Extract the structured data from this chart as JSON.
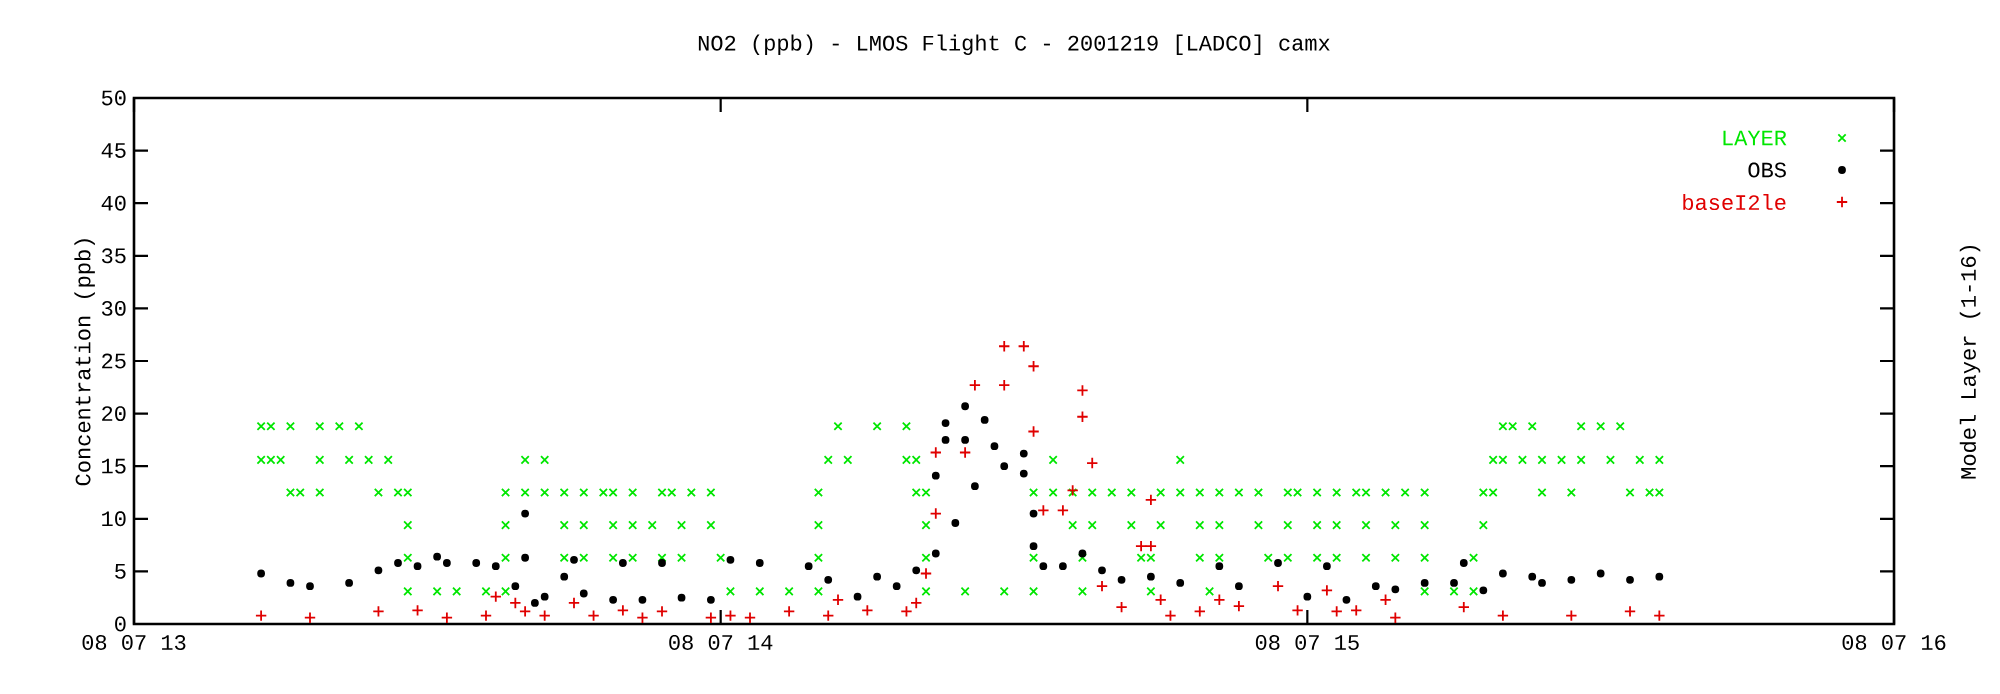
{
  "chart_data": {
    "type": "scatter",
    "title": "NO2 (ppb) - LMOS Flight C - 2001219 [LADCO] camx",
    "ylabel": "Concentration (ppb)",
    "y2label": "Model Layer (1-16)",
    "xlim": [
      "2001-08-07T13:00",
      "2001-08-07T16:00"
    ],
    "ylim": [
      0,
      50
    ],
    "xticks": [
      {
        "value": "2001-08-07T13:00",
        "label": "08 07 13"
      },
      {
        "value": "2001-08-07T14:00",
        "label": "08 07 14"
      },
      {
        "value": "2001-08-07T15:00",
        "label": "08 07 15"
      },
      {
        "value": "2001-08-07T16:00",
        "label": "08 07 16"
      }
    ],
    "yticks": [
      0,
      5,
      10,
      15,
      20,
      25,
      30,
      35,
      40,
      45,
      50
    ],
    "legend": "top right",
    "grid": false,
    "series": [
      {
        "name": "LAYER",
        "color": "#00e600",
        "marker": "cross",
        "x": [
          "2001-08-07T13:13",
          "2001-08-07T13:14",
          "2001-08-07T13:16",
          "2001-08-07T13:19",
          "2001-08-07T13:21",
          "2001-08-07T13:23",
          "2001-08-07T13:13",
          "2001-08-07T13:14",
          "2001-08-07T13:15",
          "2001-08-07T13:19",
          "2001-08-07T13:22",
          "2001-08-07T13:24",
          "2001-08-07T13:26",
          "2001-08-07T13:16",
          "2001-08-07T13:17",
          "2001-08-07T13:19",
          "2001-08-07T13:25",
          "2001-08-07T13:27",
          "2001-08-07T13:28",
          "2001-08-07T13:28",
          "2001-08-07T13:28",
          "2001-08-07T13:28",
          "2001-08-07T13:31",
          "2001-08-07T13:33",
          "2001-08-07T13:36",
          "2001-08-07T13:38",
          "2001-08-07T13:38",
          "2001-08-07T13:38",
          "2001-08-07T13:38",
          "2001-08-07T13:40",
          "2001-08-07T13:40",
          "2001-08-07T13:42",
          "2001-08-07T13:42",
          "2001-08-07T13:44",
          "2001-08-07T13:44",
          "2001-08-07T13:46",
          "2001-08-07T13:44",
          "2001-08-07T13:46",
          "2001-08-07T13:46",
          "2001-08-07T13:48",
          "2001-08-07T13:49",
          "2001-08-07T13:49",
          "2001-08-07T13:51",
          "2001-08-07T13:49",
          "2001-08-07T13:51",
          "2001-08-07T13:51",
          "2001-08-07T13:54",
          "2001-08-07T13:53",
          "2001-08-07T13:56",
          "2001-08-07T13:54",
          "2001-08-07T13:56",
          "2001-08-07T13:55",
          "2001-08-07T13:57",
          "2001-08-07T13:59",
          "2001-08-07T13:59",
          "2001-08-07T14:00",
          "2001-08-07T14:01",
          "2001-08-07T14:04",
          "2001-08-07T14:07",
          "2001-08-07T14:10",
          "2001-08-07T14:10",
          "2001-08-07T14:10",
          "2001-08-07T14:10",
          "2001-08-07T14:11",
          "2001-08-07T14:13",
          "2001-08-07T14:12",
          "2001-08-07T14:16",
          "2001-08-07T14:19",
          "2001-08-07T14:19",
          "2001-08-07T14:20",
          "2001-08-07T14:20",
          "2001-08-07T14:21",
          "2001-08-07T14:21",
          "2001-08-07T14:21",
          "2001-08-07T14:21",
          "2001-08-07T14:25",
          "2001-08-07T14:29",
          "2001-08-07T14:32",
          "2001-08-07T14:32",
          "2001-08-07T14:32",
          "2001-08-07T14:34",
          "2001-08-07T14:36",
          "2001-08-07T14:34",
          "2001-08-07T14:36",
          "2001-08-07T14:37",
          "2001-08-07T14:37",
          "2001-08-07T14:38",
          "2001-08-07T14:38",
          "2001-08-07T14:40",
          "2001-08-07T14:42",
          "2001-08-07T14:42",
          "2001-08-07T14:43",
          "2001-08-07T14:44",
          "2001-08-07T14:44",
          "2001-08-07T14:45",
          "2001-08-07T14:45",
          "2001-08-07T14:47",
          "2001-08-07T14:49",
          "2001-08-07T14:47",
          "2001-08-07T14:49",
          "2001-08-07T14:49",
          "2001-08-07T14:51",
          "2001-08-07T14:50",
          "2001-08-07T14:51",
          "2001-08-07T14:51",
          "2001-08-07T14:53",
          "2001-08-07T14:55",
          "2001-08-07T14:55",
          "2001-08-07T14:58",
          "2001-08-07T14:56",
          "2001-08-07T14:58",
          "2001-08-07T14:58",
          "2001-08-07T14:59",
          "2001-08-07T15:01",
          "2001-08-07T15:01",
          "2001-08-07T15:03",
          "2001-08-07T15:01",
          "2001-08-07T15:03",
          "2001-08-07T15:03",
          "2001-08-07T15:05",
          "2001-08-07T15:06",
          "2001-08-07T15:06",
          "2001-08-07T15:09",
          "2001-08-07T15:06",
          "2001-08-07T15:09",
          "2001-08-07T15:08",
          "2001-08-07T15:10",
          "2001-08-07T15:12",
          "2001-08-07T15:12",
          "2001-08-07T15:12",
          "2001-08-07T15:12",
          "2001-08-07T15:15",
          "2001-08-07T15:17",
          "2001-08-07T15:17",
          "2001-08-07T15:18",
          "2001-08-07T15:18",
          "2001-08-07T15:19",
          "2001-08-07T15:19",
          "2001-08-07T15:20",
          "2001-08-07T15:20",
          "2001-08-07T15:21",
          "2001-08-07T15:23",
          "2001-08-07T15:22",
          "2001-08-07T15:24",
          "2001-08-07T15:24",
          "2001-08-07T15:27",
          "2001-08-07T15:26",
          "2001-08-07T15:28",
          "2001-08-07T15:28",
          "2001-08-07T15:30",
          "2001-08-07T15:32",
          "2001-08-07T15:31",
          "2001-08-07T15:34",
          "2001-08-07T15:33",
          "2001-08-07T15:35",
          "2001-08-07T15:36",
          "2001-08-07T15:36"
        ],
        "values": [
          18.8,
          18.8,
          18.8,
          18.8,
          18.8,
          18.8,
          15.6,
          15.6,
          15.6,
          15.6,
          15.6,
          15.6,
          15.6,
          12.5,
          12.5,
          12.5,
          12.5,
          12.5,
          12.5,
          9.4,
          6.3,
          3.1,
          3.1,
          3.1,
          3.1,
          3.1,
          6.3,
          9.4,
          12.5,
          12.5,
          15.6,
          15.6,
          12.5,
          12.5,
          9.4,
          9.4,
          6.3,
          6.3,
          12.5,
          12.5,
          12.5,
          9.4,
          9.4,
          6.3,
          6.3,
          12.5,
          12.5,
          9.4,
          9.4,
          6.3,
          6.3,
          12.5,
          12.5,
          12.5,
          9.4,
          6.3,
          3.1,
          3.1,
          3.1,
          3.1,
          6.3,
          9.4,
          12.5,
          15.6,
          15.6,
          18.8,
          18.8,
          18.8,
          15.6,
          15.6,
          12.5,
          12.5,
          9.4,
          6.3,
          3.1,
          3.1,
          3.1,
          3.1,
          6.3,
          12.5,
          12.5,
          12.5,
          15.6,
          9.4,
          6.3,
          3.1,
          9.4,
          12.5,
          12.5,
          12.5,
          9.4,
          6.3,
          6.3,
          3.1,
          9.4,
          12.5,
          12.5,
          12.5,
          15.6,
          9.4,
          6.3,
          6.3,
          3.1,
          9.4,
          12.5,
          12.5,
          12.5,
          9.4,
          9.4,
          6.3,
          6.3,
          12.5,
          12.5,
          12.5,
          9.4,
          9.4,
          6.3,
          6.3,
          12.5,
          12.5,
          12.5,
          9.4,
          9.4,
          6.3,
          6.3,
          12.5,
          12.5,
          12.5,
          9.4,
          6.3,
          3.1,
          3.1,
          3.1,
          6.3,
          9.4,
          12.5,
          12.5,
          15.6,
          15.6,
          18.8,
          18.8,
          18.8,
          15.6,
          15.6,
          12.5,
          12.5,
          15.6,
          15.6,
          18.8,
          18.8,
          18.8,
          15.6,
          15.6,
          12.5,
          12.5,
          12.5,
          15.6
        ]
      },
      {
        "name": "OBS",
        "color": "#000000",
        "marker": "circle",
        "x": [
          "2001-08-07T13:13",
          "2001-08-07T13:16",
          "2001-08-07T13:18",
          "2001-08-07T13:22",
          "2001-08-07T13:25",
          "2001-08-07T13:27",
          "2001-08-07T13:29",
          "2001-08-07T13:31",
          "2001-08-07T13:32",
          "2001-08-07T13:35",
          "2001-08-07T13:37",
          "2001-08-07T13:39",
          "2001-08-07T13:40",
          "2001-08-07T13:40",
          "2001-08-07T13:41",
          "2001-08-07T13:42",
          "2001-08-07T13:44",
          "2001-08-07T13:45",
          "2001-08-07T13:46",
          "2001-08-07T13:49",
          "2001-08-07T13:50",
          "2001-08-07T13:52",
          "2001-08-07T13:54",
          "2001-08-07T13:56",
          "2001-08-07T13:59",
          "2001-08-07T14:01",
          "2001-08-07T14:04",
          "2001-08-07T14:09",
          "2001-08-07T14:11",
          "2001-08-07T14:14",
          "2001-08-07T14:16",
          "2001-08-07T14:18",
          "2001-08-07T14:20",
          "2001-08-07T14:22",
          "2001-08-07T14:22",
          "2001-08-07T14:23",
          "2001-08-07T14:23",
          "2001-08-07T14:24",
          "2001-08-07T14:25",
          "2001-08-07T14:25",
          "2001-08-07T14:26",
          "2001-08-07T14:27",
          "2001-08-07T14:28",
          "2001-08-07T14:29",
          "2001-08-07T14:31",
          "2001-08-07T14:31",
          "2001-08-07T14:32",
          "2001-08-07T14:32",
          "2001-08-07T14:33",
          "2001-08-07T14:35",
          "2001-08-07T14:37",
          "2001-08-07T14:39",
          "2001-08-07T14:41",
          "2001-08-07T14:44",
          "2001-08-07T14:47",
          "2001-08-07T14:51",
          "2001-08-07T14:53",
          "2001-08-07T14:57",
          "2001-08-07T15:00",
          "2001-08-07T15:02",
          "2001-08-07T15:04",
          "2001-08-07T15:07",
          "2001-08-07T15:09",
          "2001-08-07T15:12",
          "2001-08-07T15:15",
          "2001-08-07T15:16",
          "2001-08-07T15:18",
          "2001-08-07T15:20",
          "2001-08-07T15:23",
          "2001-08-07T15:24",
          "2001-08-07T15:27",
          "2001-08-07T15:30",
          "2001-08-07T15:33",
          "2001-08-07T15:36"
        ],
        "values": [
          4.8,
          3.9,
          3.6,
          3.9,
          5.1,
          5.8,
          5.5,
          6.4,
          5.8,
          5.8,
          5.5,
          3.6,
          10.5,
          6.3,
          2.0,
          2.6,
          4.5,
          6.1,
          2.9,
          2.3,
          5.8,
          2.3,
          5.8,
          2.5,
          2.3,
          6.1,
          5.8,
          5.5,
          4.2,
          2.6,
          4.5,
          3.6,
          5.1,
          6.7,
          14.1,
          19.1,
          17.5,
          9.6,
          20.7,
          17.5,
          13.1,
          19.4,
          16.9,
          15.0,
          14.3,
          16.2,
          10.5,
          7.4,
          5.5,
          5.5,
          6.7,
          5.1,
          4.2,
          4.5,
          3.9,
          5.5,
          3.6,
          5.8,
          2.6,
          5.5,
          2.3,
          3.6,
          3.3,
          3.9,
          3.9,
          5.8,
          3.2,
          4.8,
          4.5,
          3.9,
          4.2,
          4.8,
          4.2,
          4.5
        ]
      },
      {
        "name": "baseI2le",
        "color": "#e00000",
        "marker": "plus",
        "x": [
          "2001-08-07T13:13",
          "2001-08-07T13:18",
          "2001-08-07T13:25",
          "2001-08-07T13:29",
          "2001-08-07T13:32",
          "2001-08-07T13:36",
          "2001-08-07T13:37",
          "2001-08-07T13:39",
          "2001-08-07T13:40",
          "2001-08-07T13:42",
          "2001-08-07T13:45",
          "2001-08-07T13:47",
          "2001-08-07T13:50",
          "2001-08-07T13:52",
          "2001-08-07T13:54",
          "2001-08-07T13:59",
          "2001-08-07T14:01",
          "2001-08-07T14:03",
          "2001-08-07T14:07",
          "2001-08-07T14:11",
          "2001-08-07T14:12",
          "2001-08-07T14:15",
          "2001-08-07T14:19",
          "2001-08-07T14:20",
          "2001-08-07T14:21",
          "2001-08-07T14:22",
          "2001-08-07T14:22",
          "2001-08-07T14:25",
          "2001-08-07T14:26",
          "2001-08-07T14:29",
          "2001-08-07T14:29",
          "2001-08-07T14:31",
          "2001-08-07T14:32",
          "2001-08-07T14:32",
          "2001-08-07T14:33",
          "2001-08-07T14:35",
          "2001-08-07T14:36",
          "2001-08-07T14:37",
          "2001-08-07T14:37",
          "2001-08-07T14:38",
          "2001-08-07T14:39",
          "2001-08-07T14:41",
          "2001-08-07T14:43",
          "2001-08-07T14:44",
          "2001-08-07T14:44",
          "2001-08-07T14:45",
          "2001-08-07T14:46",
          "2001-08-07T14:49",
          "2001-08-07T14:51",
          "2001-08-07T14:53",
          "2001-08-07T14:57",
          "2001-08-07T14:59",
          "2001-08-07T15:02",
          "2001-08-07T15:03",
          "2001-08-07T15:05",
          "2001-08-07T15:08",
          "2001-08-07T15:09",
          "2001-08-07T15:16",
          "2001-08-07T15:20",
          "2001-08-07T15:27",
          "2001-08-07T15:33",
          "2001-08-07T15:36"
        ],
        "values": [
          0.8,
          0.6,
          1.2,
          1.3,
          0.6,
          0.8,
          2.6,
          2.0,
          1.2,
          0.8,
          2.0,
          0.8,
          1.3,
          0.6,
          1.2,
          0.6,
          0.8,
          0.6,
          1.2,
          0.8,
          2.3,
          1.3,
          1.2,
          2.0,
          4.8,
          10.5,
          16.3,
          16.3,
          22.7,
          22.7,
          26.4,
          26.4,
          24.5,
          18.3,
          10.8,
          10.8,
          12.7,
          22.2,
          19.7,
          15.3,
          3.6,
          1.6,
          7.4,
          11.8,
          7.4,
          2.3,
          0.8,
          1.2,
          2.3,
          1.7,
          3.6,
          1.3,
          3.2,
          1.2,
          1.3,
          2.3,
          0.6,
          1.6,
          0.8,
          0.8,
          1.2,
          0.8
        ]
      }
    ]
  }
}
